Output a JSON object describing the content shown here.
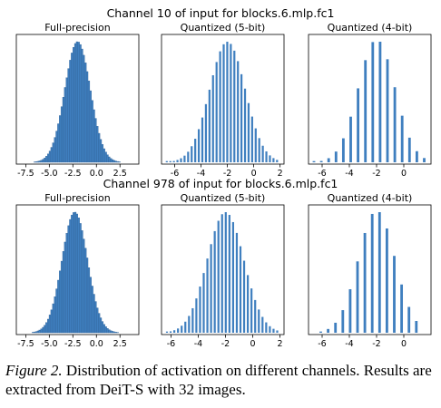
{
  "figure": {
    "rows": [
      {
        "title": "Channel 10 of input for blocks.6.mlp.fc1",
        "panels": [
          {
            "title": "Full-precision",
            "type": "bar",
            "xlim": [
              -8.5,
              4.5
            ],
            "ticks": [
              -7.5,
              -5.0,
              -2.5,
              0.0,
              2.5
            ],
            "tick_labels": [
              "-7.5",
              "-5.0",
              "-2.5",
              "0.0",
              "2.5"
            ],
            "bins": {
              "mu": -2.0,
              "sigma": 1.35,
              "start": -8.0,
              "end": 3.6,
              "width": 0.18,
              "min": 0.0
            }
          },
          {
            "title": "Quantized (5-bit)",
            "type": "bar",
            "xlim": [
              -7.0,
              2.3
            ],
            "ticks": [
              -6,
              -4,
              -2,
              0,
              2
            ],
            "tick_labels": [
              "-6",
              "-4",
              "-2",
              "0",
              "2"
            ],
            "bins": {
              "mu": -2.0,
              "sigma": 1.35,
              "start": -6.6,
              "end": 1.9,
              "width": 0.27,
              "min": 0.01
            }
          },
          {
            "title": "Quantized (4-bit)",
            "type": "bar",
            "xlim": [
              -7.0,
              2.0
            ],
            "ticks": [
              -6,
              -4,
              -2,
              0
            ],
            "tick_labels": [
              "-6",
              "-4",
              "-2",
              "0"
            ],
            "bins": {
              "mu": -2.0,
              "sigma": 1.35,
              "start": -6.6,
              "end": 1.7,
              "width": 0.54,
              "min": 0.01
            }
          }
        ]
      },
      {
        "title": "Channel 978 of input for blocks.6.mlp.fc1",
        "panels": [
          {
            "title": "Full-precision",
            "type": "bar",
            "xlim": [
              -8.5,
              4.5
            ],
            "ticks": [
              -7.5,
              -5.0,
              -2.5,
              0.0,
              2.5
            ],
            "tick_labels": [
              "-7.5",
              "-5.0",
              "-2.5",
              "0.0",
              "2.5"
            ],
            "bins": {
              "mu": -2.3,
              "sigma": 1.35,
              "start": -8.0,
              "end": 3.6,
              "width": 0.18,
              "min": 0.0
            }
          },
          {
            "title": "Quantized (5-bit)",
            "type": "bar",
            "xlim": [
              -6.7,
              2.3
            ],
            "ticks": [
              -6,
              -4,
              -2,
              0,
              2
            ],
            "tick_labels": [
              "-6",
              "-4",
              "-2",
              "0",
              "2"
            ],
            "bins": {
              "mu": -2.0,
              "sigma": 1.35,
              "start": -6.3,
              "end": 1.9,
              "width": 0.27,
              "min": 0.01
            }
          },
          {
            "title": "Quantized (4-bit)",
            "type": "bar",
            "xlim": [
              -7.0,
              2.0
            ],
            "ticks": [
              -6,
              -4,
              -2,
              0
            ],
            "tick_labels": [
              "-6",
              "-4",
              "-2",
              "0"
            ],
            "bins": {
              "mu": -2.0,
              "sigma": 1.35,
              "start": -6.1,
              "end": 1.4,
              "width": 0.54,
              "min": 0.01
            }
          }
        ]
      }
    ],
    "bar_color": "#3f7fbf",
    "edge_color": "#2c5f95"
  },
  "caption": {
    "label": "Figure 2.",
    "text": " Distribution of activation on different channels. Results are extracted from DeiT-S with 32 images."
  }
}
